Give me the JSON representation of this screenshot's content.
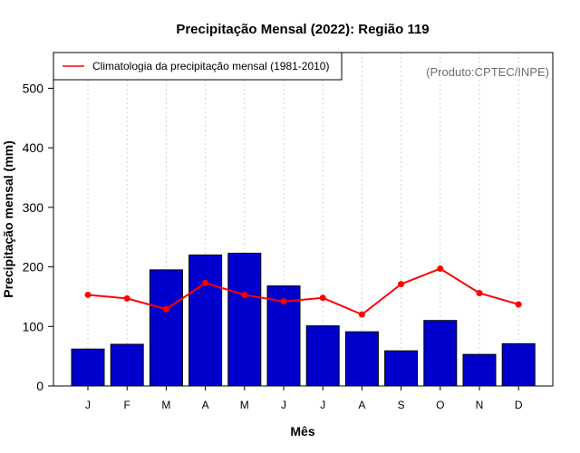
{
  "chart_data": {
    "type": "bar",
    "title": "Precipitação Mensal (2022): Região 119",
    "xlabel": "Mês",
    "ylabel": "Precipitação mensal (mm)",
    "source": "(Produto:CPTEC/INPE)",
    "ylim": [
      0,
      560
    ],
    "yticks": [
      0,
      100,
      200,
      300,
      400,
      500
    ],
    "grid": "vertical dotted",
    "legend_position": "top-left",
    "categories": [
      "J",
      "F",
      "M",
      "A",
      "M",
      "J",
      "J",
      "A",
      "S",
      "O",
      "N",
      "D"
    ],
    "series": [
      {
        "name": "Precipitação mensal (2022)",
        "type": "bar",
        "color": "#0000cd",
        "values": [
          62,
          70,
          195,
          220,
          223,
          168,
          101,
          91,
          59,
          110,
          53,
          71
        ]
      },
      {
        "name": "Climatologia da precipitação mensal (1981-2010)",
        "type": "line",
        "color": "#ff0000",
        "values": [
          153,
          147,
          129,
          173,
          153,
          142,
          148,
          120,
          171,
          197,
          156,
          137
        ]
      }
    ]
  }
}
